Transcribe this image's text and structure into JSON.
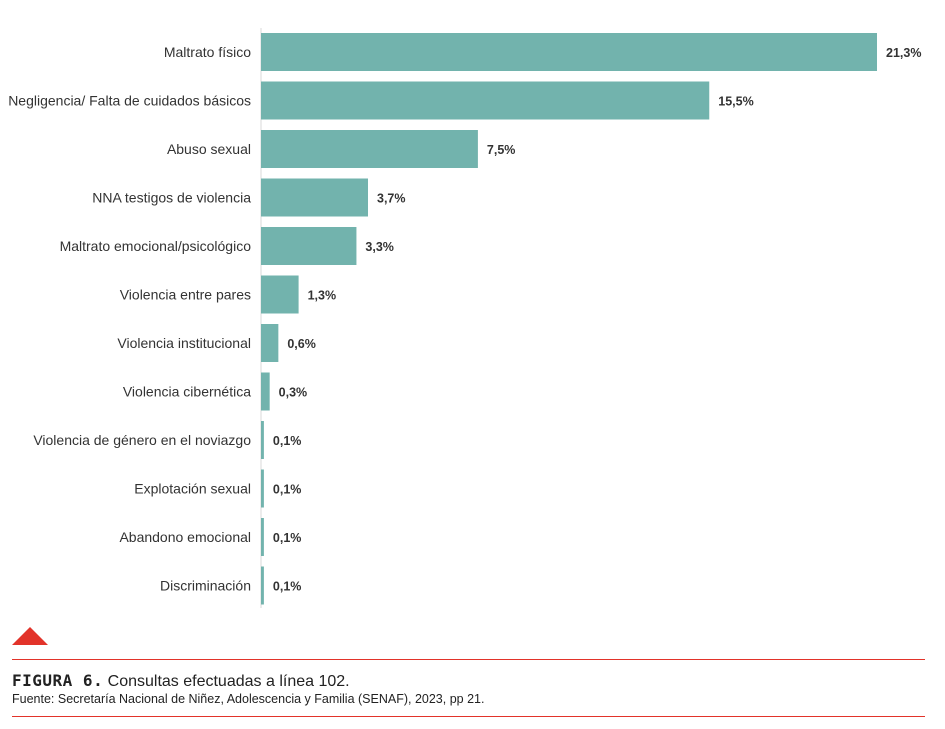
{
  "chart_data": {
    "type": "bar",
    "orientation": "horizontal",
    "categories": [
      "Maltrato físico",
      "Negligencia/ Falta de cuidados básicos",
      "Abuso sexual",
      "NNA testigos de violencia",
      "Maltrato emocional/psicológico",
      "Violencia entre pares",
      "Violencia institucional",
      "Violencia cibernética",
      "Violencia de género en el noviazgo",
      "Explotación sexual",
      "Abandono emocional",
      "Discriminación"
    ],
    "values": [
      21.3,
      15.5,
      7.5,
      3.7,
      3.3,
      1.3,
      0.6,
      0.3,
      0.1,
      0.1,
      0.1,
      0.1
    ],
    "value_labels": [
      "21,3%",
      "15,5%",
      "7,5%",
      "3,7%",
      "3,3%",
      "1,3%",
      "0,6%",
      "0,3%",
      "0,1%",
      "0,1%",
      "0,1%",
      "0,1%"
    ],
    "xlim": [
      0,
      21.3
    ],
    "grid": false,
    "bar_color": "#72b3ad"
  },
  "caption": {
    "figure_label": "FIGURA 6.",
    "text": " Consultas efectuadas a línea 102.",
    "source": "Fuente: Secretaría Nacional de Niñez, Adolescencia y Familia (SENAF), 2023, pp 21."
  },
  "colors": {
    "accent": "#e2332a",
    "bar": "#72b3ad"
  }
}
